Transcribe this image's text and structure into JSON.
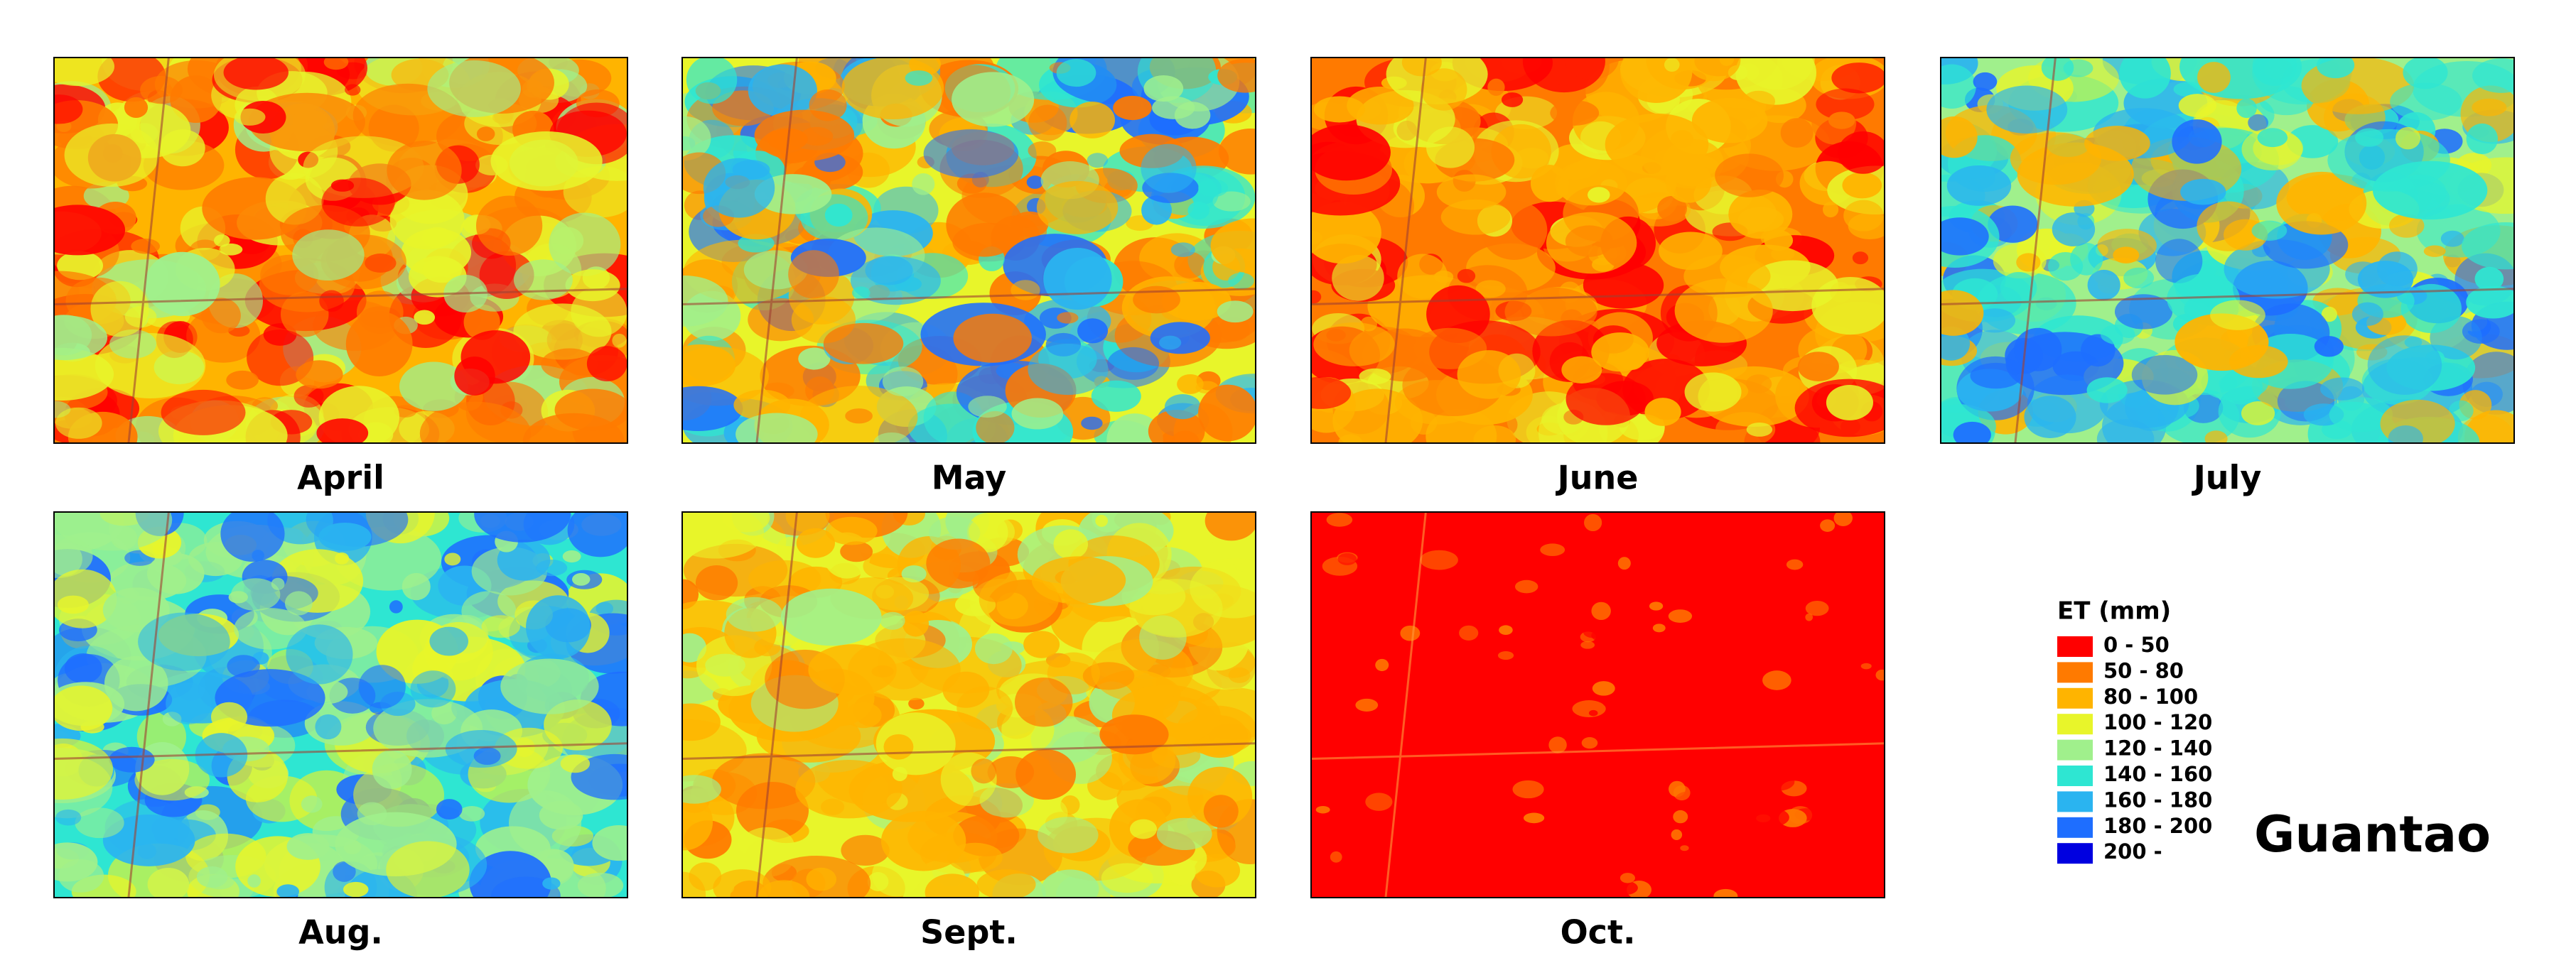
{
  "panels": [
    {
      "label": "April"
    },
    {
      "label": "May"
    },
    {
      "label": "June"
    },
    {
      "label": "July"
    },
    {
      "label": "Aug."
    },
    {
      "label": "Sept."
    },
    {
      "label": "Oct."
    }
  ],
  "legend": {
    "title": "ET (mm)",
    "items": [
      {
        "label": "0 - 50",
        "color": "#ff0000"
      },
      {
        "label": "50 - 80",
        "color": "#ff7a00"
      },
      {
        "label": "80 - 100",
        "color": "#ffb400"
      },
      {
        "label": "100 - 120",
        "color": "#e8f52a"
      },
      {
        "label": "120 - 140",
        "color": "#a0f08c"
      },
      {
        "label": "140 - 160",
        "color": "#2ee6d2"
      },
      {
        "label": "160 - 180",
        "color": "#2ab4f0"
      },
      {
        "label": "180 - 200",
        "color": "#1e6eff"
      },
      {
        "label": "200 -",
        "color": "#0000e0"
      }
    ]
  },
  "region": "Guantao"
}
